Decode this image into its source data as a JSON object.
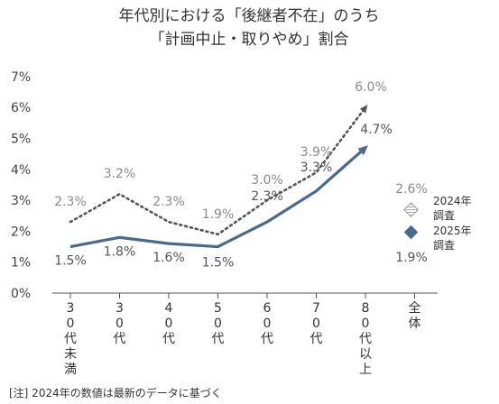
{
  "chart_data": {
    "type": "line",
    "title": [
      "年代別における「後継者不在」のうち",
      "「計画中止・取りやめ」割合"
    ],
    "categories": [
      "30代未満",
      "30代",
      "40代",
      "50代",
      "60代",
      "70代",
      "80代以上"
    ],
    "overall_label": "全体",
    "ylim": [
      0,
      7
    ],
    "yticks": [
      "0%",
      "1%",
      "2%",
      "3%",
      "4%",
      "5%",
      "6%",
      "7%"
    ],
    "grid": false,
    "legend_position": "right",
    "series": [
      {
        "name": "2024年調査",
        "legend_lines": [
          "2024年",
          "調査"
        ],
        "style": "dotted",
        "color": "#555555",
        "values": [
          2.3,
          3.2,
          2.3,
          1.9,
          3.0,
          3.9,
          6.0
        ],
        "labels": [
          "2.3%",
          "3.2%",
          "2.3%",
          "1.9%",
          "3.0%",
          "3.9%",
          "6.0%"
        ],
        "overall": 2.6,
        "overall_label": "2.6%"
      },
      {
        "name": "2025年調査",
        "legend_lines": [
          "2025年",
          "調査"
        ],
        "style": "solid",
        "color": "#4a6a8c",
        "values": [
          1.5,
          1.8,
          1.6,
          1.5,
          2.3,
          3.3,
          4.7
        ],
        "labels": [
          "1.5%",
          "1.8%",
          "1.6%",
          "1.5%",
          "2.3%",
          "3.3%",
          "4.7%"
        ],
        "overall": 1.9,
        "overall_label": "1.9%"
      }
    ],
    "note": "[注]  2024年の数値は最新のデータに基づく"
  }
}
